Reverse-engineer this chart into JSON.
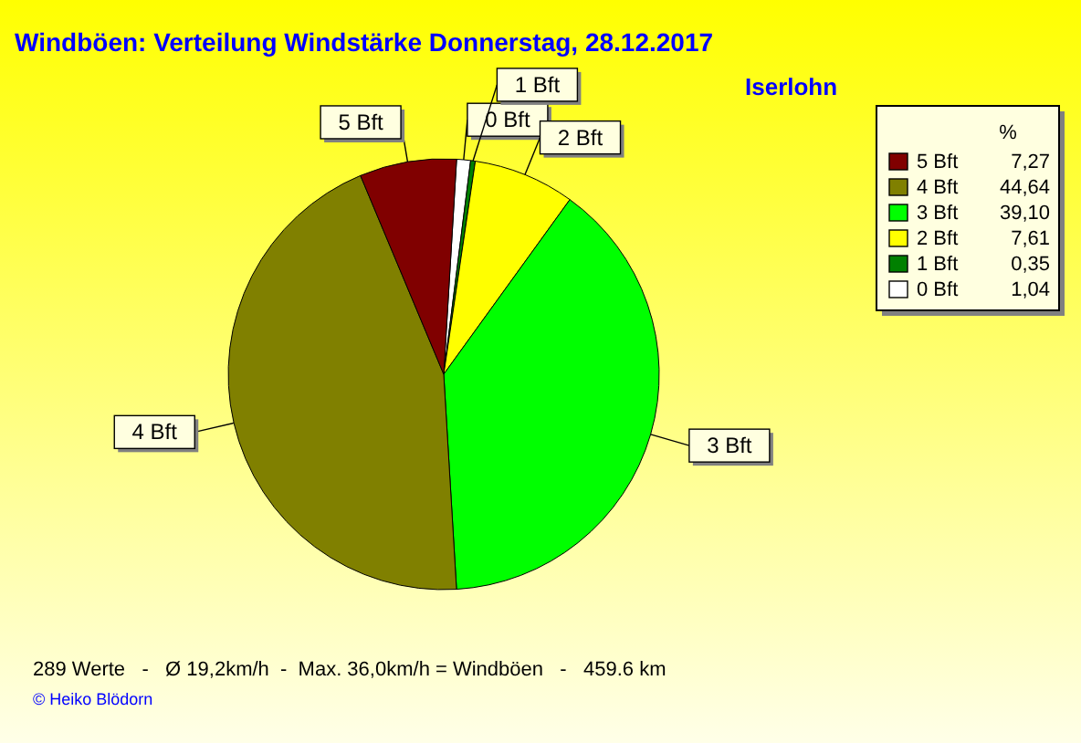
{
  "chart_data": {
    "type": "pie",
    "title": "Windböen: Verteilung Windstärke  Donnerstag, 28.12.2017",
    "subtitle": "Iserlohn",
    "legend_title": "%",
    "categories": [
      "5 Bft",
      "4 Bft",
      "3 Bft",
      "2 Bft",
      "1 Bft",
      "0 Bft"
    ],
    "values": [
      7.27,
      44.64,
      39.1,
      7.61,
      0.35,
      1.04
    ],
    "value_labels": [
      "7,27",
      "44,64",
      "39,10",
      "7,61",
      "0,35",
      "1,04"
    ],
    "colors": [
      "#800000",
      "#808000",
      "#00ff00",
      "#ffff00",
      "#008000",
      "#ffffff"
    ],
    "legend": "right",
    "annotations": [
      "289 Werte   -   Ø 19,2km/h  -  Max. 36,0km/h = Windböen   -   459.6 km",
      "© Heiko Blödorn"
    ]
  }
}
